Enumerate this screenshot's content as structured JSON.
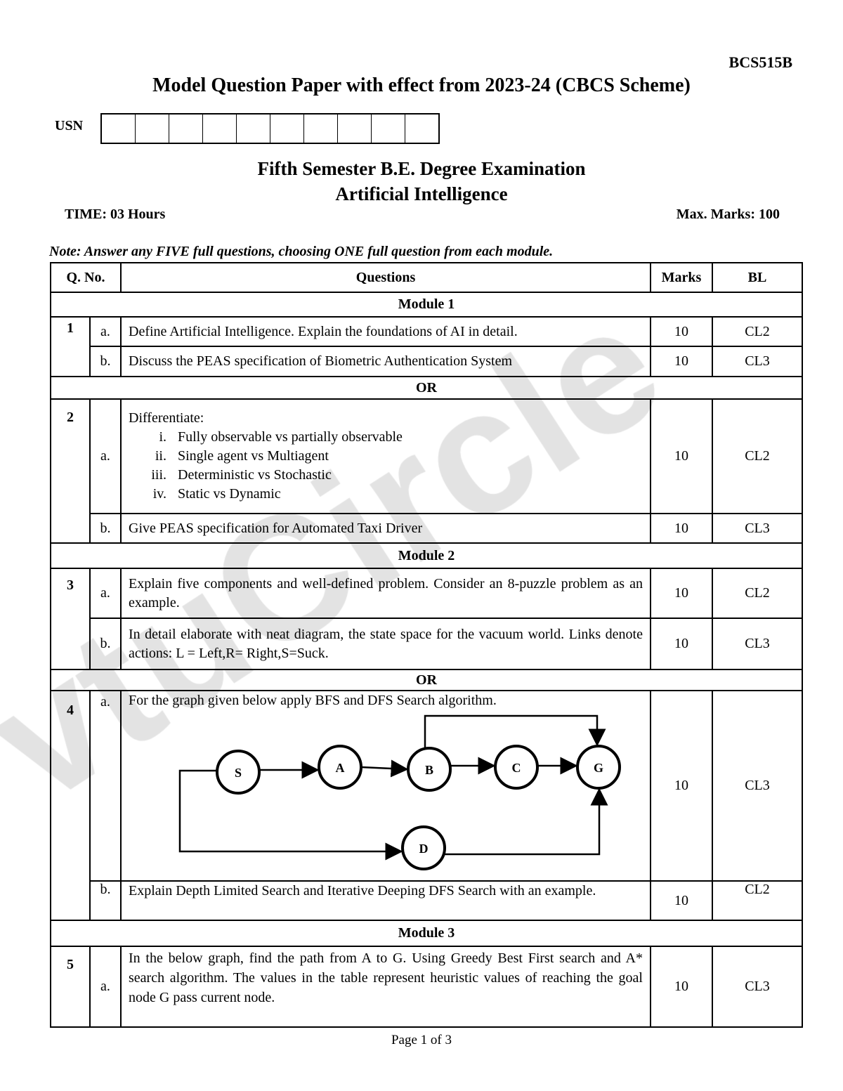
{
  "watermark": "vtuCircle",
  "course_code": "BCS515B",
  "title": "Model Question Paper with effect from 2023-24 (CBCS Scheme)",
  "usn_label": "USN",
  "exam": "Fifth Semester B.E. Degree Examination",
  "subject": "Artificial Intelligence",
  "time": "TIME: 03 Hours",
  "max_marks": "Max. Marks: 100",
  "note": "Note: Answer any FIVE full questions, choosing ONE full question from each module.",
  "headers": {
    "qno": "Q. No.",
    "questions": "Questions",
    "marks": "Marks",
    "bl": "BL"
  },
  "module1": "Module 1",
  "module2": "Module 2",
  "module3": "Module 3",
  "or": "OR",
  "q": [
    {
      "no": "1",
      "a": {
        "sub": "a.",
        "text": "Define Artificial Intelligence. Explain the foundations of AI in detail.",
        "marks": "10",
        "bl": "CL2"
      },
      "b": {
        "sub": "b.",
        "text": "Discuss the PEAS specification of Biometric Authentication System",
        "marks": "10",
        "bl": "CL3"
      }
    },
    {
      "no": "2",
      "a": {
        "sub": "a.",
        "text": "Differentiate:",
        "items": [
          [
            "i.",
            "Fully observable vs partially observable"
          ],
          [
            "ii.",
            "Single agent vs Multiagent"
          ],
          [
            "iii.",
            "Deterministic vs Stochastic"
          ],
          [
            "iv.",
            "Static vs Dynamic"
          ]
        ],
        "marks": "10",
        "bl": "CL2"
      },
      "b": {
        "sub": "b.",
        "text": "Give PEAS specification for Automated Taxi Driver",
        "marks": "10",
        "bl": "CL3"
      }
    },
    {
      "no": "3",
      "a": {
        "sub": "a.",
        "text": "Explain five components and well-defined problem. Consider an 8-puzzle problem as an example.",
        "marks": "10",
        "bl": "CL2"
      },
      "b": {
        "sub": "b.",
        "text": "In detail elaborate with neat diagram, the state space for the vacuum world. Links denote actions: L = Left,R= Right,S=Suck.",
        "marks": "10",
        "bl": "CL3"
      }
    },
    {
      "no": "4",
      "a": {
        "sub": "a.",
        "text": "For the graph given below apply BFS and DFS Search algorithm.",
        "marks": "10",
        "bl": "CL3",
        "graph": {
          "nodes": [
            "S",
            "A",
            "B",
            "C",
            "G",
            "D"
          ],
          "edges": [
            [
              "S",
              "A"
            ],
            [
              "A",
              "B"
            ],
            [
              "B",
              "C"
            ],
            [
              "C",
              "G"
            ],
            [
              "B",
              "G"
            ],
            [
              "S",
              "D"
            ],
            [
              "D",
              "G"
            ]
          ]
        }
      },
      "b": {
        "sub": "b.",
        "text": "Explain Depth Limited Search and Iterative Deeping DFS Search with an example.",
        "marks": "10",
        "bl": "CL2"
      }
    },
    {
      "no": "5",
      "a": {
        "sub": "a.",
        "text": "In the below graph, find the path from A to G. Using Greedy Best First search and A* search algorithm. The values in the table represent heuristic values of reaching the goal node G pass current node.",
        "marks": "10",
        "bl": "CL3"
      }
    }
  ],
  "page": "Page 1 of 3"
}
